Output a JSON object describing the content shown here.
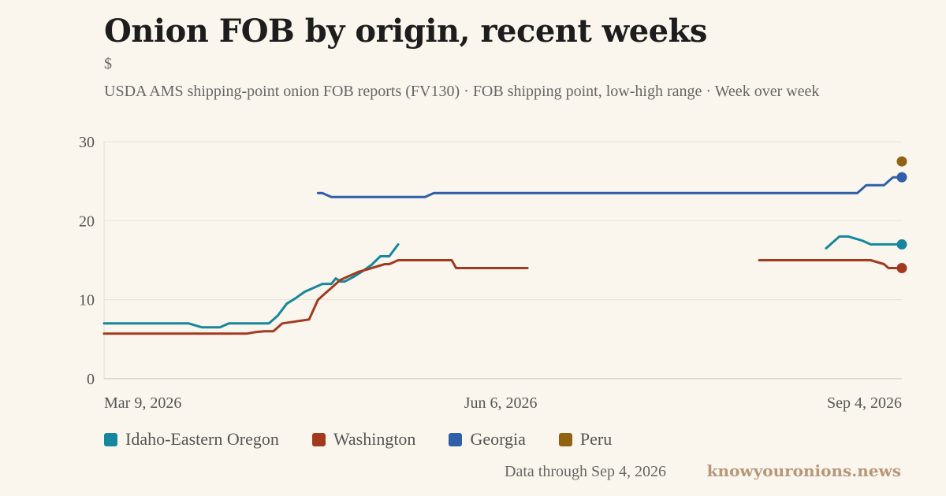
{
  "header": {
    "title": "Onion FOB by origin, recent weeks",
    "unit": "$",
    "subtitle": "USDA AMS shipping-point onion FOB reports (FV130) · FOB shipping point, low-high range · Week over week"
  },
  "footer": {
    "note": "Data through Sep 4, 2026",
    "brand": "knowyouronions.news"
  },
  "chart_data": {
    "type": "line",
    "title": "Onion FOB by origin, recent weeks",
    "ylabel": "$",
    "ylim": [
      0,
      30
    ],
    "y_ticks": [
      0,
      10,
      20,
      30
    ],
    "x_ticks": [
      "2026-03-09",
      "2026-06-06",
      "2026-09-04"
    ],
    "x_tick_labels": [
      "Mar 9, 2026",
      "Jun 6, 2026",
      "Sep 4, 2026"
    ],
    "xlim": [
      "2026-03-09",
      "2026-09-04"
    ],
    "grid": "horizontal",
    "legend_position": "bottom",
    "series": [
      {
        "name": "Idaho-Eastern Oregon",
        "color": "#16879c",
        "segments": [
          [
            [
              "2026-03-09",
              7
            ],
            [
              "2026-03-19",
              7
            ],
            [
              "2026-03-28",
              7
            ],
            [
              "2026-03-31",
              6.5
            ],
            [
              "2026-04-04",
              6.5
            ],
            [
              "2026-04-06",
              7
            ],
            [
              "2026-04-09",
              7
            ],
            [
              "2026-04-12",
              7
            ],
            [
              "2026-04-15",
              7
            ],
            [
              "2026-04-17",
              8
            ],
            [
              "2026-04-19",
              9.5
            ],
            [
              "2026-04-21",
              10.2
            ],
            [
              "2026-04-23",
              11
            ],
            [
              "2026-04-25",
              11.5
            ],
            [
              "2026-04-27",
              12
            ],
            [
              "2026-04-29",
              12
            ],
            [
              "2026-04-30",
              12.7
            ],
            [
              "2026-05-01",
              12.3
            ],
            [
              "2026-05-02",
              12.3
            ],
            [
              "2026-05-04",
              12.9
            ],
            [
              "2026-05-06",
              13.6
            ],
            [
              "2026-05-08",
              14.4
            ],
            [
              "2026-05-10",
              15.5
            ],
            [
              "2026-05-12",
              15.5
            ],
            [
              "2026-05-14",
              17
            ]
          ],
          [
            [
              "2026-08-18",
              16.5
            ],
            [
              "2026-08-19",
              17
            ],
            [
              "2026-08-21",
              18
            ],
            [
              "2026-08-23",
              18
            ],
            [
              "2026-08-26",
              17.5
            ],
            [
              "2026-08-28",
              17
            ],
            [
              "2026-09-04",
              17
            ]
          ]
        ]
      },
      {
        "name": "Washington",
        "color": "#a33a20",
        "segments": [
          [
            [
              "2026-03-09",
              5.7
            ],
            [
              "2026-04-10",
              5.7
            ],
            [
              "2026-04-12",
              5.9
            ],
            [
              "2026-04-14",
              6
            ],
            [
              "2026-04-16",
              6
            ],
            [
              "2026-04-18",
              7
            ],
            [
              "2026-04-24",
              7.5
            ],
            [
              "2026-04-26",
              10
            ],
            [
              "2026-05-01",
              12.5
            ],
            [
              "2026-05-05",
              13.5
            ],
            [
              "2026-05-11",
              14.5
            ],
            [
              "2026-05-12",
              14.5
            ],
            [
              "2026-05-14",
              15
            ],
            [
              "2026-05-17",
              15
            ],
            [
              "2026-05-26",
              15
            ],
            [
              "2026-05-27",
              14
            ],
            [
              "2026-06-05",
              14
            ],
            [
              "2026-06-12",
              14
            ]
          ],
          [
            [
              "2026-08-03",
              15
            ],
            [
              "2026-08-15",
              15
            ],
            [
              "2026-08-25",
              15
            ],
            [
              "2026-08-28",
              15
            ],
            [
              "2026-08-31",
              14.5
            ],
            [
              "2026-09-01",
              14
            ],
            [
              "2026-09-04",
              14
            ]
          ]
        ]
      },
      {
        "name": "Georgia",
        "color": "#2e5fa8",
        "segments": [
          [
            [
              "2026-04-26",
              23.5
            ],
            [
              "2026-04-27",
              23.5
            ],
            [
              "2026-04-29",
              23
            ],
            [
              "2026-05-01",
              23
            ],
            [
              "2026-05-20",
              23
            ],
            [
              "2026-05-22",
              23.5
            ],
            [
              "2026-06-15",
              23.5
            ],
            [
              "2026-07-15",
              23.5
            ],
            [
              "2026-08-15",
              23.5
            ],
            [
              "2026-08-25",
              23.5
            ],
            [
              "2026-08-27",
              24.5
            ],
            [
              "2026-08-31",
              24.5
            ],
            [
              "2026-09-01",
              25
            ],
            [
              "2026-09-02",
              25.5
            ],
            [
              "2026-09-04",
              25.5
            ]
          ]
        ]
      },
      {
        "name": "Peru",
        "color": "#8f6312",
        "segments": [
          [
            [
              "2026-09-04",
              27.5
            ]
          ]
        ]
      }
    ]
  }
}
